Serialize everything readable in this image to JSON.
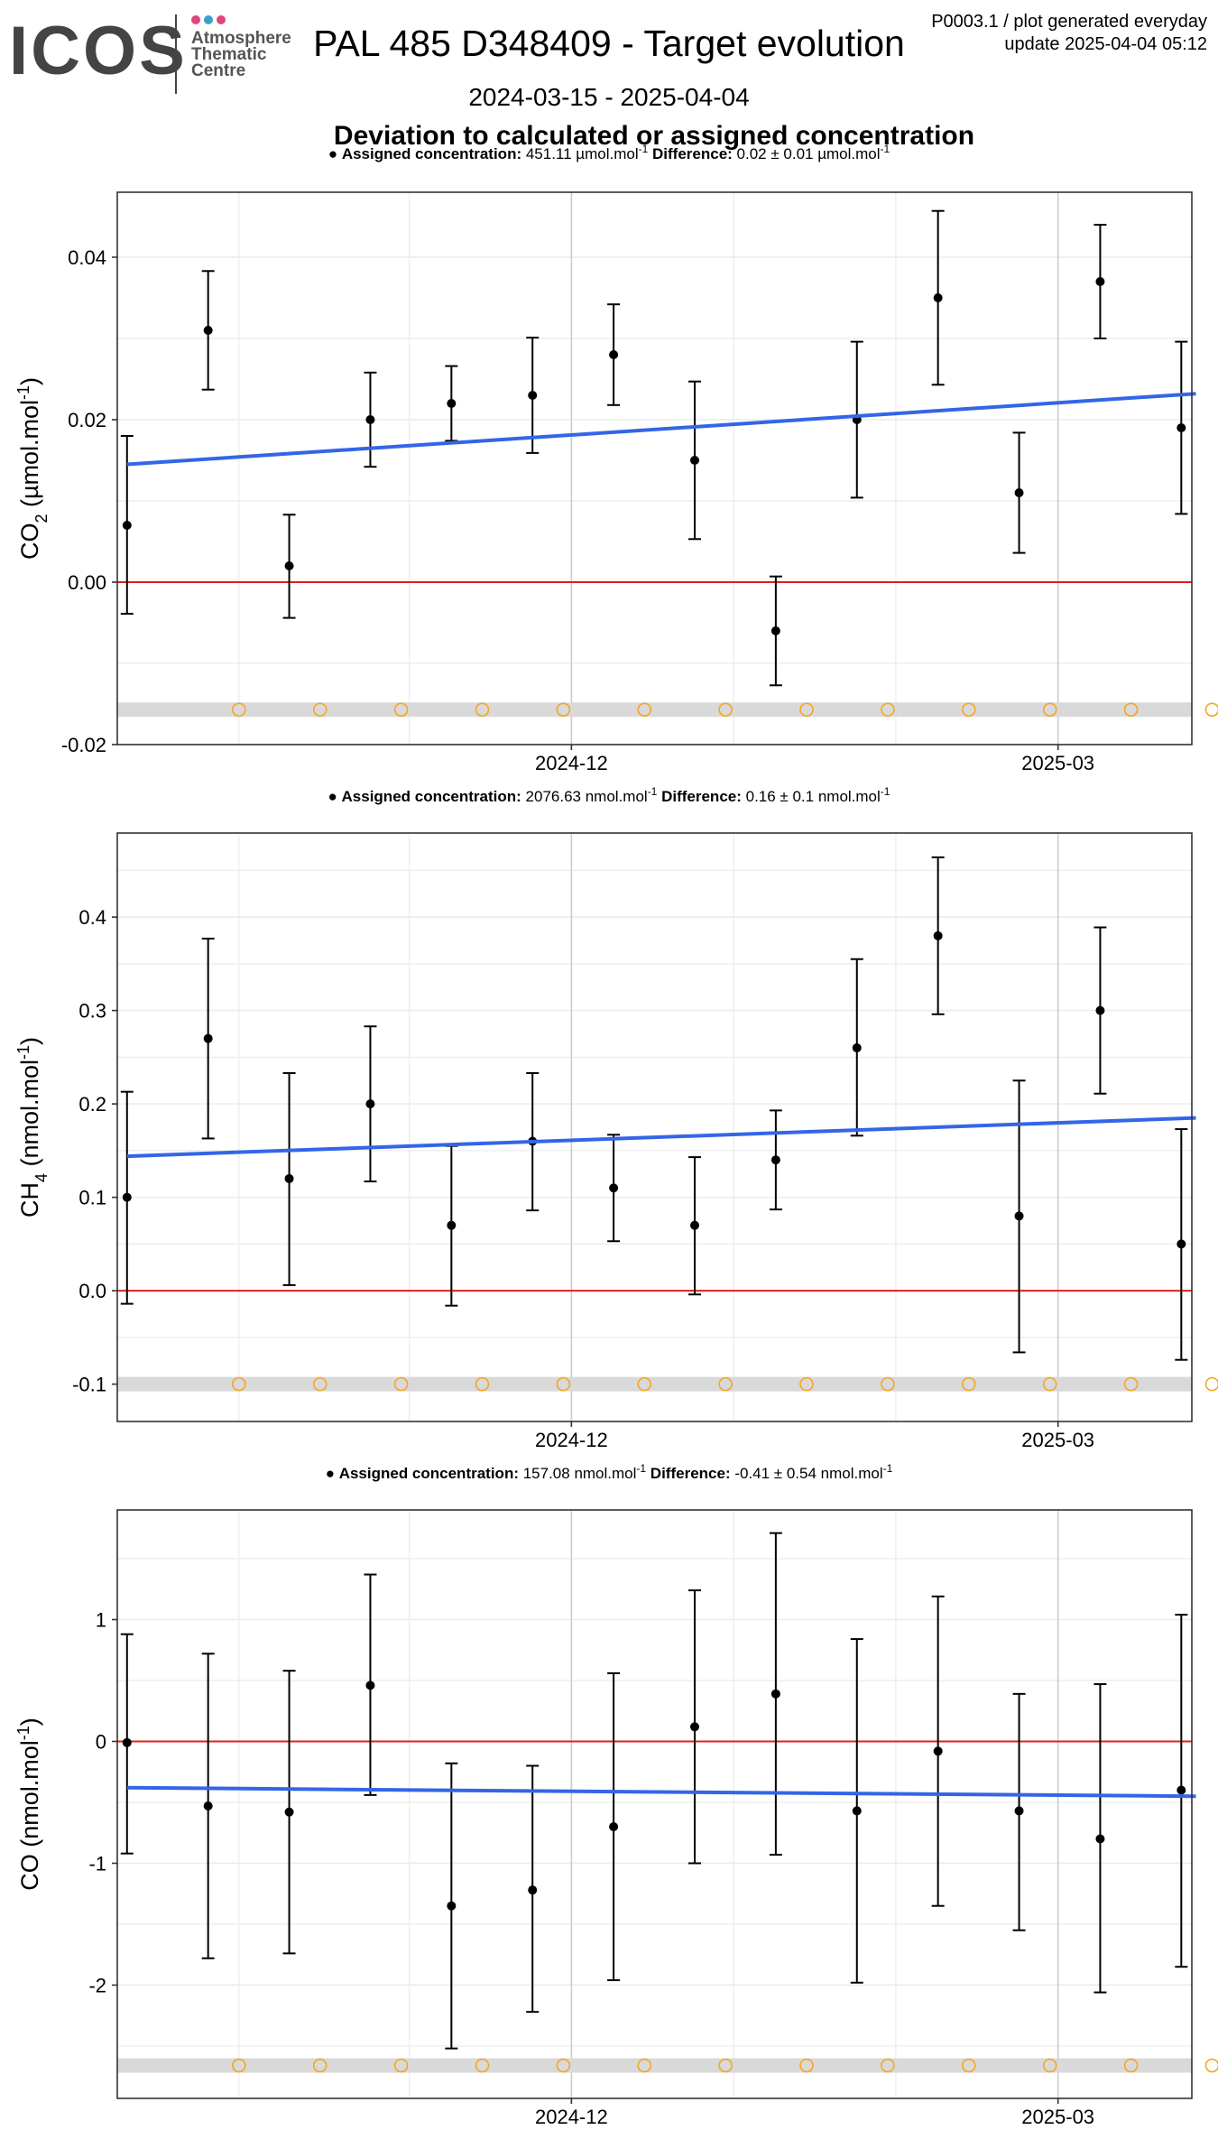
{
  "header": {
    "logo_text": "ICOS",
    "logo_sub_1": "Atmosphere",
    "logo_sub_2": "Thematic",
    "logo_sub_3": "Centre",
    "logo_dot_colors": [
      "#e0457b",
      "#3aa0c9",
      "#e0457b"
    ],
    "title": "PAL 485 D348409 - Target evolution",
    "date_range": "2024-03-15 - 2025-04-04",
    "corner_line_1": "P0003.1 / plot generated everyday",
    "corner_line_2": "update  2025-04-04 05:12",
    "subtitle": "Deviation to calculated or assigned concentration"
  },
  "colors": {
    "points": "#000000",
    "trend": "#3366e6",
    "zero_line": "#e0201b",
    "flag_band": "#d9d9d9",
    "flag_circle": "#f5a623",
    "grid_major": "#cccccc",
    "grid_minor": "#ebebeb"
  },
  "chart_data": [
    {
      "type": "scatter",
      "gas": "CO2",
      "legend_label": "Assigned concentration:",
      "legend_value": "451.11 µmol.mol",
      "legend_diff_label": "Difference:",
      "legend_diff_value": "0.02 ± 0.01 µmol.mol",
      "ylabel_species": "CO",
      "ylabel_sub": "2",
      "ylabel_unit": " (µmol.mol",
      "ylim": [
        -0.02,
        0.048
      ],
      "yticks": [
        -0.02,
        0.0,
        0.02,
        0.04
      ],
      "ytick_labels": [
        "-0.02",
        "0.00",
        "0.02",
        "0.04"
      ],
      "flag_level": -0.0157,
      "flag_x": [
        2.4,
        3.4,
        4.4,
        5.4,
        6.4,
        7.4,
        8.4,
        9.4,
        10.4,
        11.4,
        12.4,
        13.4,
        14.4
      ],
      "trend": [
        [
          1.02,
          0.0145
        ],
        [
          14.2,
          0.0232
        ]
      ],
      "points": [
        {
          "x": 1.02,
          "y": 0.007,
          "lo": -0.0039,
          "hi": 0.018
        },
        {
          "x": 2.02,
          "y": 0.031,
          "lo": 0.0237,
          "hi": 0.0383
        },
        {
          "x": 3.02,
          "y": 0.002,
          "lo": -0.0044,
          "hi": 0.0083
        },
        {
          "x": 4.02,
          "y": 0.02,
          "lo": 0.0142,
          "hi": 0.0258
        },
        {
          "x": 5.02,
          "y": 0.022,
          "lo": 0.0174,
          "hi": 0.0266
        },
        {
          "x": 6.02,
          "y": 0.023,
          "lo": 0.0159,
          "hi": 0.0301
        },
        {
          "x": 7.02,
          "y": 0.028,
          "lo": 0.0218,
          "hi": 0.0342
        },
        {
          "x": 8.02,
          "y": 0.015,
          "lo": 0.0053,
          "hi": 0.0247
        },
        {
          "x": 9.02,
          "y": -0.006,
          "lo": -0.0127,
          "hi": 0.0007
        },
        {
          "x": 10.02,
          "y": 0.02,
          "lo": 0.0104,
          "hi": 0.0296
        },
        {
          "x": 11.02,
          "y": 0.035,
          "lo": 0.0243,
          "hi": 0.0457
        },
        {
          "x": 12.02,
          "y": 0.011,
          "lo": 0.0036,
          "hi": 0.0184
        },
        {
          "x": 13.02,
          "y": 0.037,
          "lo": 0.03,
          "hi": 0.044
        },
        {
          "x": 14.02,
          "y": 0.019,
          "lo": 0.0084,
          "hi": 0.0296
        }
      ]
    },
    {
      "type": "scatter",
      "gas": "CH4",
      "legend_label": "Assigned concentration:",
      "legend_value": "2076.63 nmol.mol",
      "legend_diff_label": "Difference:",
      "legend_diff_value": "0.16 ± 0.1 nmol.mol",
      "ylabel_species": "CH",
      "ylabel_sub": "4",
      "ylabel_unit": " (nmol.mol",
      "ylim": [
        -0.14,
        0.49
      ],
      "yticks": [
        -0.1,
        0.0,
        0.1,
        0.2,
        0.3,
        0.4
      ],
      "ytick_labels": [
        "-0.1",
        "0.0",
        "0.1",
        "0.2",
        "0.3",
        "0.4"
      ],
      "flag_level": -0.1,
      "flag_x": [
        2.4,
        3.4,
        4.4,
        5.4,
        6.4,
        7.4,
        8.4,
        9.4,
        10.4,
        11.4,
        12.4,
        13.4,
        14.4
      ],
      "trend": [
        [
          1.02,
          0.144
        ],
        [
          14.2,
          0.185
        ]
      ],
      "points": [
        {
          "x": 1.02,
          "y": 0.1,
          "lo": -0.014,
          "hi": 0.213
        },
        {
          "x": 2.02,
          "y": 0.27,
          "lo": 0.163,
          "hi": 0.377
        },
        {
          "x": 3.02,
          "y": 0.12,
          "lo": 0.006,
          "hi": 0.233
        },
        {
          "x": 4.02,
          "y": 0.2,
          "lo": 0.117,
          "hi": 0.283
        },
        {
          "x": 5.02,
          "y": 0.07,
          "lo": -0.016,
          "hi": 0.155
        },
        {
          "x": 6.02,
          "y": 0.16,
          "lo": 0.086,
          "hi": 0.233
        },
        {
          "x": 7.02,
          "y": 0.11,
          "lo": 0.053,
          "hi": 0.167
        },
        {
          "x": 8.02,
          "y": 0.07,
          "lo": -0.004,
          "hi": 0.143
        },
        {
          "x": 9.02,
          "y": 0.14,
          "lo": 0.087,
          "hi": 0.193
        },
        {
          "x": 10.02,
          "y": 0.26,
          "lo": 0.166,
          "hi": 0.355
        },
        {
          "x": 11.02,
          "y": 0.38,
          "lo": 0.296,
          "hi": 0.464
        },
        {
          "x": 12.02,
          "y": 0.08,
          "lo": -0.066,
          "hi": 0.225
        },
        {
          "x": 13.02,
          "y": 0.3,
          "lo": 0.211,
          "hi": 0.389
        },
        {
          "x": 14.02,
          "y": 0.05,
          "lo": -0.074,
          "hi": 0.173
        }
      ]
    },
    {
      "type": "scatter",
      "gas": "CO",
      "legend_label": "Assigned concentration:",
      "legend_value": "157.08 nmol.mol",
      "legend_diff_label": "Difference:",
      "legend_diff_value": "-0.41 ± 0.54 nmol.mol",
      "ylabel_species": "CO",
      "ylabel_sub": "",
      "ylabel_unit": " (nmol.mol",
      "ylim": [
        -2.93,
        1.9
      ],
      "yticks": [
        -2,
        -1,
        0,
        1
      ],
      "ytick_labels": [
        "-2",
        "-1",
        "0",
        "1"
      ],
      "flag_level": -2.66,
      "flag_x": [
        2.4,
        3.4,
        4.4,
        5.4,
        6.4,
        7.4,
        8.4,
        9.4,
        10.4,
        11.4,
        12.4,
        13.4,
        14.4
      ],
      "trend": [
        [
          1.02,
          -0.38
        ],
        [
          14.2,
          -0.45
        ]
      ],
      "points": [
        {
          "x": 1.02,
          "y": -0.01,
          "lo": -0.92,
          "hi": 0.88
        },
        {
          "x": 2.02,
          "y": -0.53,
          "lo": -1.78,
          "hi": 0.72
        },
        {
          "x": 3.02,
          "y": -0.58,
          "lo": -1.74,
          "hi": 0.58
        },
        {
          "x": 4.02,
          "y": 0.46,
          "lo": -0.44,
          "hi": 1.37
        },
        {
          "x": 5.02,
          "y": -1.35,
          "lo": -2.52,
          "hi": -0.18
        },
        {
          "x": 6.02,
          "y": -1.22,
          "lo": -2.22,
          "hi": -0.2
        },
        {
          "x": 7.02,
          "y": -0.7,
          "lo": -1.96,
          "hi": 0.56
        },
        {
          "x": 8.02,
          "y": 0.12,
          "lo": -1.0,
          "hi": 1.24
        },
        {
          "x": 9.02,
          "y": 0.39,
          "lo": -0.93,
          "hi": 1.71
        },
        {
          "x": 10.02,
          "y": -0.57,
          "lo": -1.98,
          "hi": 0.84
        },
        {
          "x": 11.02,
          "y": -0.08,
          "lo": -1.35,
          "hi": 1.19
        },
        {
          "x": 12.02,
          "y": -0.57,
          "lo": -1.55,
          "hi": 0.39
        },
        {
          "x": 13.02,
          "y": -0.8,
          "lo": -2.06,
          "hi": 0.47
        },
        {
          "x": 14.02,
          "y": -0.4,
          "lo": -1.85,
          "hi": 1.04
        }
      ]
    }
  ],
  "x_axis": {
    "xlim": [
      0.9,
      14.15
    ],
    "major_ticks": [
      6.5,
      12.5
    ],
    "major_labels": [
      "2024-12",
      "2025-03"
    ],
    "minor_grid": [
      2.4,
      4.5,
      8.5,
      10.5
    ]
  },
  "unit_superscript": "-1",
  "ylabel_close": ")"
}
